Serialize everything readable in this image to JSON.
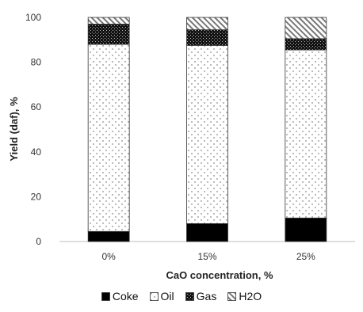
{
  "chart_data": {
    "type": "bar",
    "stacked": true,
    "categories": [
      "0%",
      "15%",
      "25%"
    ],
    "series": [
      {
        "name": "Coke",
        "values": [
          4.5,
          8.0,
          10.5
        ],
        "color": "#000000",
        "pattern": "solid"
      },
      {
        "name": "Oil",
        "values": [
          83.5,
          79.5,
          75.0
        ],
        "color": "#ffffff",
        "pattern": "dots"
      },
      {
        "name": "Gas",
        "values": [
          9.0,
          7.0,
          5.0
        ],
        "color": "#111111",
        "pattern": "dense-check"
      },
      {
        "name": "H2O",
        "values": [
          3.0,
          5.5,
          9.5
        ],
        "color": "#888888",
        "pattern": "diagonal-hatch"
      }
    ],
    "xlabel": "CaO concentration, %",
    "ylabel": "Yield (daf), %",
    "ylim": [
      0,
      100
    ],
    "yticks": [
      "0",
      "20",
      "40",
      "60",
      "80",
      "100"
    ],
    "grid": false,
    "legend_position": "bottom"
  }
}
